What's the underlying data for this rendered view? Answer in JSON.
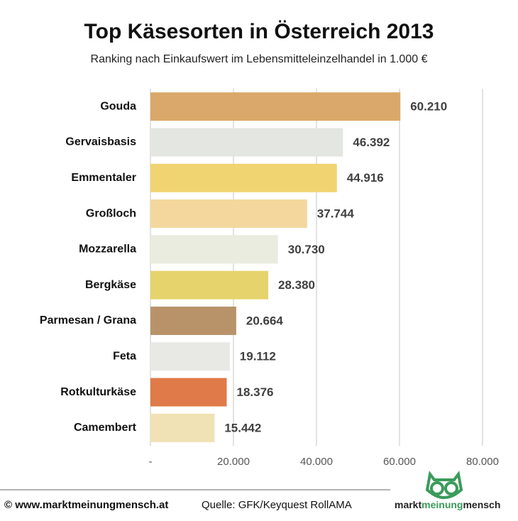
{
  "chart_data": {
    "type": "hbar",
    "title": "Top Käsesorten in Österreich 2013",
    "subtitle": "Ranking nach Einkaufswert im Lebensmitteleinzelhandel  in 1.000 €",
    "categories": [
      "Gouda",
      "Gervaisbasis",
      "Emmentaler",
      "Großloch",
      "Mozzarella",
      "Bergkäse",
      "Parmesan / Grana",
      "Feta",
      "Rotkulturkäse",
      "Camembert"
    ],
    "values": [
      60210,
      46392,
      44916,
      37744,
      30730,
      28380,
      20664,
      19112,
      18376,
      15442
    ],
    "value_labels": [
      "60.210",
      "46.392",
      "44.916",
      "37.744",
      "30.730",
      "28.380",
      "20.664",
      "19.112",
      "18.376",
      "15.442"
    ],
    "colors": [
      "#d9a86a",
      "#e4e7e1",
      "#f1d472",
      "#f3d79c",
      "#e9ecdf",
      "#e6d36c",
      "#b8936a",
      "#e8e8e5",
      "#e07a48",
      "#f0e2b4"
    ],
    "xlim": [
      0,
      80000
    ],
    "xticks": [
      {
        "value": 0,
        "label": "-"
      },
      {
        "value": 20000,
        "label": "20.000"
      },
      {
        "value": 40000,
        "label": "40.000"
      },
      {
        "value": 60000,
        "label": "60.000"
      },
      {
        "value": 80000,
        "label": "80.000"
      }
    ],
    "grid": true
  },
  "footer": {
    "copyright": "© www.marktmeinungmensch.at",
    "source": "Quelle: GFK/Keyquest RollAMA",
    "logo": [
      "markt",
      "meinung",
      "mensch"
    ]
  }
}
